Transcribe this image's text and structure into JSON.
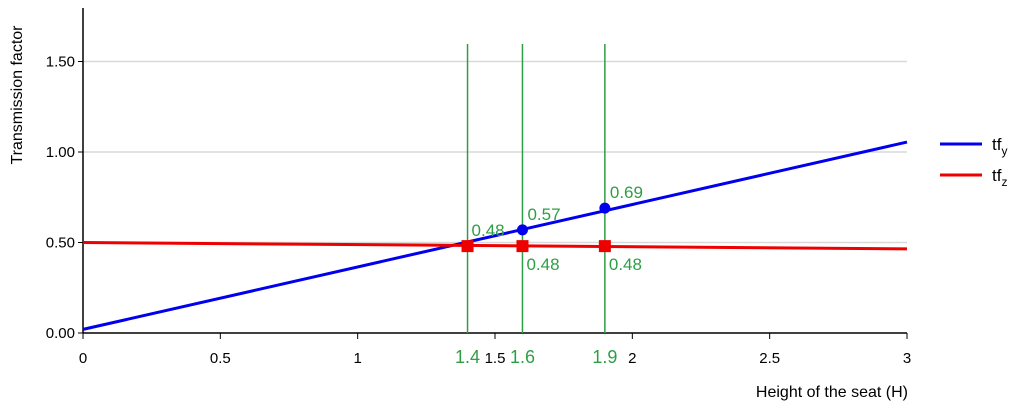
{
  "chart_data": {
    "type": "line",
    "xlabel": "Height of the seat (H)",
    "ylabel": "Transmission factor",
    "xlim": [
      0,
      3
    ],
    "ylim": [
      0,
      1.75
    ],
    "x_ticks": [
      "0",
      "0.5",
      "1",
      "1.5",
      "2",
      "2.5",
      "3"
    ],
    "y_ticks": [
      "0.00",
      "0.50",
      "1.00",
      "1.50"
    ],
    "grid": "horizontal",
    "legend_position": "right",
    "series": [
      {
        "name": "tf",
        "subscript": "y",
        "color": "#0000ee",
        "x": [
          0,
          3
        ],
        "y": [
          0.02,
          1.055
        ],
        "marker": "circle",
        "marked_points": [
          {
            "x": 1.6,
            "y": 0.57,
            "label": "0.57"
          },
          {
            "x": 1.9,
            "y": 0.69,
            "label": "0.69"
          }
        ]
      },
      {
        "name": "tf",
        "subscript": "z",
        "color": "#ee0000",
        "x": [
          0,
          3
        ],
        "y": [
          0.5,
          0.465
        ],
        "marker": "square",
        "marked_points": [
          {
            "x": 1.4,
            "y": 0.48,
            "label": "0.48"
          },
          {
            "x": 1.6,
            "y": 0.48,
            "label": "0.48"
          },
          {
            "x": 1.9,
            "y": 0.48,
            "label": "0.48"
          }
        ]
      }
    ],
    "reference_lines": [
      {
        "x": 1.4,
        "label": "1.4"
      },
      {
        "x": 1.6,
        "label": "1.6"
      },
      {
        "x": 1.9,
        "label": "1.9"
      }
    ],
    "reference_color": "#2e9e45"
  }
}
